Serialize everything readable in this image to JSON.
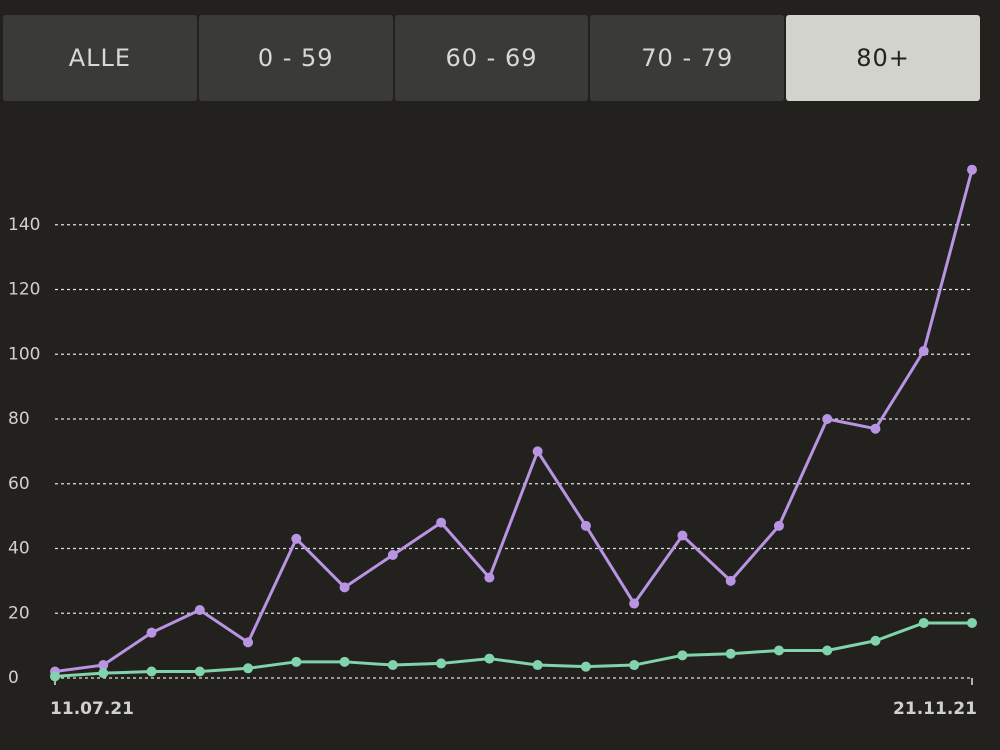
{
  "tabs": {
    "labels": [
      "ALLE",
      "0 - 59",
      "60 - 69",
      "70 - 79",
      "80+"
    ],
    "selected": 4
  },
  "chart_data": {
    "type": "line",
    "categories": [
      "11.07.21",
      null,
      null,
      null,
      null,
      null,
      null,
      null,
      null,
      null,
      null,
      null,
      null,
      null,
      null,
      null,
      null,
      null,
      null,
      "21.11.21"
    ],
    "series": [
      {
        "color": "#b994e3",
        "values": [
          2,
          4,
          14,
          21,
          11,
          43,
          28,
          38,
          48,
          31,
          70,
          47,
          23,
          44,
          30,
          47,
          80,
          77,
          101,
          157
        ]
      },
      {
        "color": "#80d3ab",
        "values": [
          0.5,
          1.5,
          2,
          2,
          3,
          5,
          5,
          4,
          4.5,
          6,
          4,
          3.5,
          4,
          7,
          7.5,
          8.5,
          8.5,
          11.5,
          17,
          17
        ]
      }
    ],
    "ylim": [
      0,
      160
    ],
    "yticks": [
      0,
      20,
      40,
      60,
      80,
      100,
      120,
      140
    ],
    "grid": true
  }
}
